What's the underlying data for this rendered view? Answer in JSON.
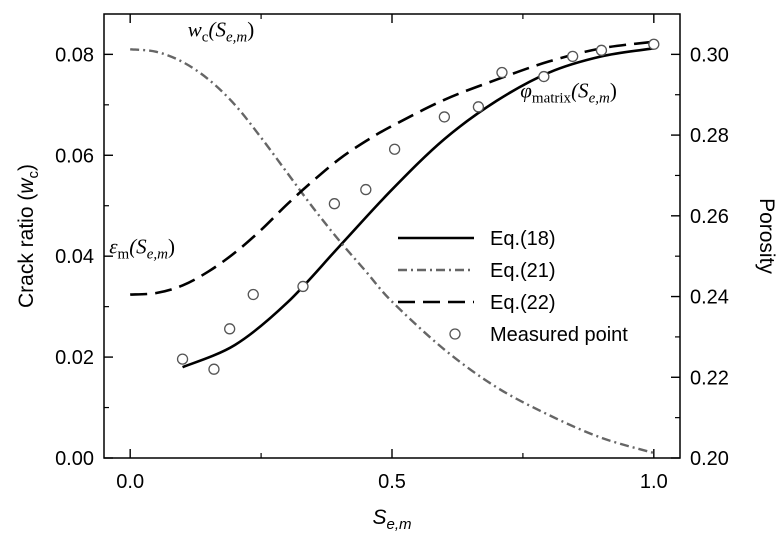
{
  "chart_data": {
    "type": "line",
    "xlabel": "S",
    "xlabel_sub": "e,m",
    "ylabel_left_main": "Crack ratio (",
    "ylabel_left_var": "w",
    "ylabel_left_sub": "c",
    "ylabel_left_close": ")",
    "ylabel_right": "Porosity",
    "xlim": [
      -0.05,
      1.05
    ],
    "ylim_left": [
      0.0,
      0.088
    ],
    "ylim_right": [
      0.2,
      0.31
    ],
    "x_ticks": [
      "0.0",
      "0.5",
      "1.0"
    ],
    "y_left_ticks": [
      "0.00",
      "0.02",
      "0.04",
      "0.06",
      "0.08"
    ],
    "y_right_ticks": [
      "0.20",
      "0.22",
      "0.24",
      "0.26",
      "0.28",
      "0.30"
    ],
    "legend_position": "center-right",
    "series": [
      {
        "name": "Eq.(18)",
        "axis": "right",
        "style": "solid",
        "x": [
          0.1,
          0.2,
          0.3,
          0.4,
          0.5,
          0.6,
          0.7,
          0.8,
          0.9,
          1.0
        ],
        "y": [
          0.2225,
          0.228,
          0.2385,
          0.2525,
          0.2665,
          0.279,
          0.2885,
          0.2955,
          0.2995,
          0.3015
        ]
      },
      {
        "name": "Eq.(21)",
        "axis": "left",
        "style": "dash-dot",
        "x": [
          0.0,
          0.05,
          0.1,
          0.15,
          0.2,
          0.25,
          0.3,
          0.35,
          0.4,
          0.45,
          0.5,
          0.6,
          0.7,
          0.8,
          0.9,
          1.0
        ],
        "y": [
          0.081,
          0.0805,
          0.0785,
          0.075,
          0.07,
          0.0635,
          0.0565,
          0.0495,
          0.043,
          0.037,
          0.031,
          0.0215,
          0.014,
          0.0085,
          0.004,
          0.001
        ]
      },
      {
        "name": "Eq.(22)",
        "axis": "left",
        "style": "dashed",
        "x": [
          0.0,
          0.05,
          0.1,
          0.15,
          0.2,
          0.25,
          0.3,
          0.35,
          0.4,
          0.45,
          0.5,
          0.6,
          0.7,
          0.8,
          0.9,
          1.0
        ],
        "y": [
          0.0324,
          0.0327,
          0.0342,
          0.037,
          0.0407,
          0.0452,
          0.0503,
          0.055,
          0.0593,
          0.0628,
          0.0658,
          0.071,
          0.075,
          0.0786,
          0.0812,
          0.0825
        ]
      },
      {
        "name": "Measured point",
        "axis": "right",
        "style": "markers",
        "x": [
          0.1,
          0.16,
          0.19,
          0.235,
          0.33,
          0.39,
          0.45,
          0.505,
          0.6,
          0.665,
          0.71,
          0.79,
          0.845,
          0.9,
          1.0
        ],
        "y": [
          0.2245,
          0.222,
          0.232,
          0.2405,
          0.2425,
          0.263,
          0.2665,
          0.2765,
          0.2845,
          0.287,
          0.2955,
          0.2945,
          0.2995,
          0.301,
          0.3025
        ]
      }
    ],
    "annotations": [
      {
        "id": "wc",
        "main": "w",
        "sub": "c",
        "arg": "(S",
        "argsub": "e,m",
        "close": ")",
        "x": 0.11,
        "y": 0.0835
      },
      {
        "id": "phi",
        "main": "φ",
        "sub": "matrix",
        "arg": "(S",
        "argsub": "e,m",
        "close": ")",
        "x": 0.745,
        "y": 0.0715
      },
      {
        "id": "eps",
        "main": "ε",
        "sub": "m",
        "arg": "(S",
        "argsub": "e,m",
        "close": ")",
        "x": -0.04,
        "y": 0.0405
      }
    ]
  }
}
